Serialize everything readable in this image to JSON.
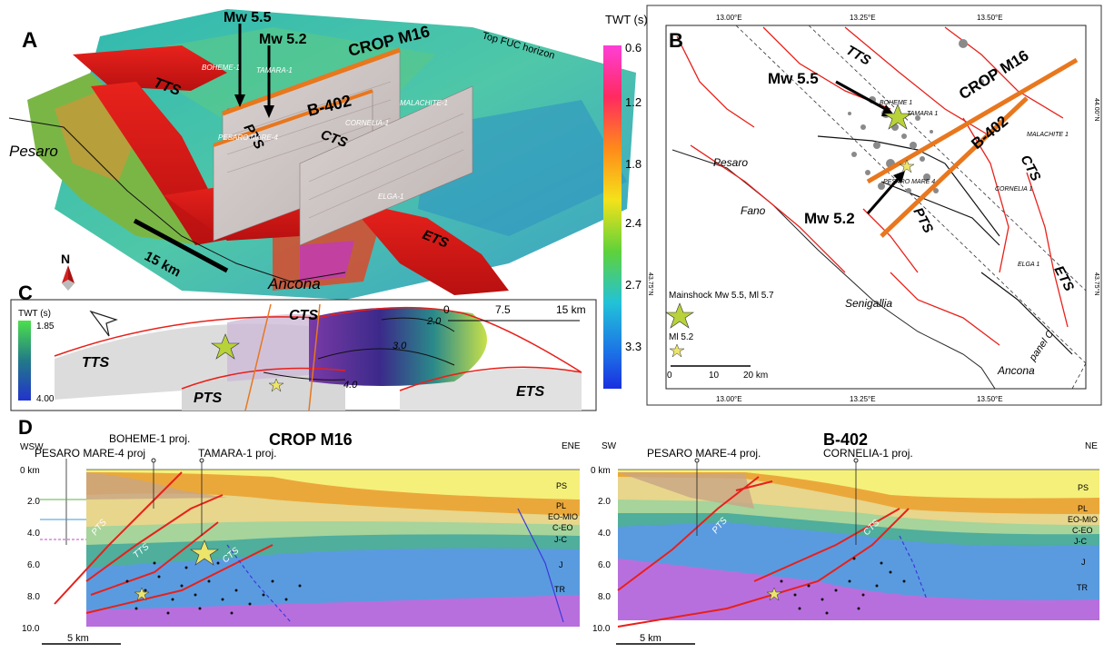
{
  "panels": {
    "a": {
      "letter": "A",
      "annotations": {
        "mw55": "Mw 5.5",
        "mw52": "Mw 5.2",
        "crop": "CROP M16",
        "b402": "B-402",
        "horizon": "Top FUC horizon"
      },
      "faults": {
        "tts": "TTS",
        "pts": "PTS",
        "cts": "CTS",
        "ets": "ETS"
      },
      "wells": {
        "boheme": "BOHEME-1",
        "tamara": "TAMARA-1",
        "malachite": "MALACHITE-1",
        "pesaro": "PESARO MARE-4",
        "cornelia": "CORNELIA-1",
        "elga": "ELGA-1"
      },
      "towns": {
        "pesaro": "Pesaro",
        "ancona": "Ancona"
      },
      "scale": "15 km",
      "north": "N"
    },
    "colorbar": {
      "title": "TWT (s)",
      "ticks": [
        "0.6",
        "1.2",
        "1.8",
        "2.4",
        "2.7",
        "3.3"
      ]
    },
    "b": {
      "letter": "B",
      "lon_top": [
        "13.00°E",
        "13.25°E",
        "13.50°E"
      ],
      "lon_bottom": [
        "13.00°E",
        "13.25°E",
        "13.50°E"
      ],
      "lat": [
        "44.00°N",
        "43.75°N"
      ],
      "annotations": {
        "mw55": "Mw 5.5",
        "mw52": "Mw 5.2",
        "crop": "CROP M16",
        "b402": "B-402",
        "panel": "panel C"
      },
      "faults": {
        "tts": "TTS",
        "pts": "PTS",
        "cts": "CTS",
        "ets": "ETS"
      },
      "wells": {
        "boheme": "BOHEME 1",
        "tamara": "TAMARA 1",
        "malachite": "MALACHITE 1",
        "pesaro": "PESARO MARE 4",
        "cornelia": "CORNELIA 1",
        "elga": "ELGA 1"
      },
      "towns": {
        "pesaro": "Pesaro",
        "fano": "Fano",
        "senigallia": "Senigallia",
        "ancona": "Ancona"
      },
      "legend": {
        "main": "Mainshock Mw 5.5, Ml 5.7",
        "ml52": "Ml 5.2"
      },
      "scale": [
        "0",
        "10",
        "20 km"
      ]
    },
    "c": {
      "letter": "C",
      "legend_title": "TWT (s)",
      "legend_top": "1.85",
      "legend_bottom": "4.00",
      "faults": {
        "tts": "TTS",
        "pts": "PTS",
        "cts": "CTS",
        "ets": "ETS"
      },
      "contours": [
        "2.0",
        "3.0",
        "4.0"
      ],
      "scale": [
        "0",
        "7.5",
        "15 km"
      ]
    },
    "d": {
      "letter": "D",
      "left": {
        "title": "CROP M16",
        "wsw": "WSW",
        "ene": "ENE",
        "wells": {
          "boheme": "BOHEME-1 proj.",
          "pesaro": "PESARO MARE-4 proj",
          "tamara": "TAMARA-1 proj."
        },
        "depths": [
          "0 km",
          "2.0",
          "4.0",
          "6.0",
          "8.0",
          "10.0"
        ],
        "units": [
          "PS",
          "PL",
          "EO-MIO",
          "C-EO",
          "J-C",
          "J",
          "TR"
        ],
        "faults": {
          "pts": "PTS",
          "tts": "TTS",
          "cts": "CTS"
        },
        "scale": "5 km"
      },
      "right": {
        "title": "B-402",
        "sw": "SW",
        "ne": "NE",
        "wells": {
          "pesaro": "PESARO MARE-4 proj.",
          "cornelia": "CORNELIA-1 proj."
        },
        "depths": [
          "0 km",
          "2.0",
          "4.0",
          "6.0",
          "8.0",
          "10.0"
        ],
        "units": [
          "PS",
          "PL",
          "EO-MIO",
          "C-EO",
          "J-C",
          "J",
          "TR"
        ],
        "faults": {
          "pts": "PTS",
          "cts": "CTS"
        },
        "scale": "5 km"
      }
    }
  },
  "colors": {
    "fault": "#e8201a",
    "profile": "#e8771e",
    "star": "#b8d23a",
    "ps": "#f5f07a",
    "pl": "#eba83a",
    "eo": "#e7d68c",
    "ceo": "#a6d49b",
    "jc": "#4fae9c",
    "j": "#5a9be0",
    "tr": "#b86fde"
  }
}
